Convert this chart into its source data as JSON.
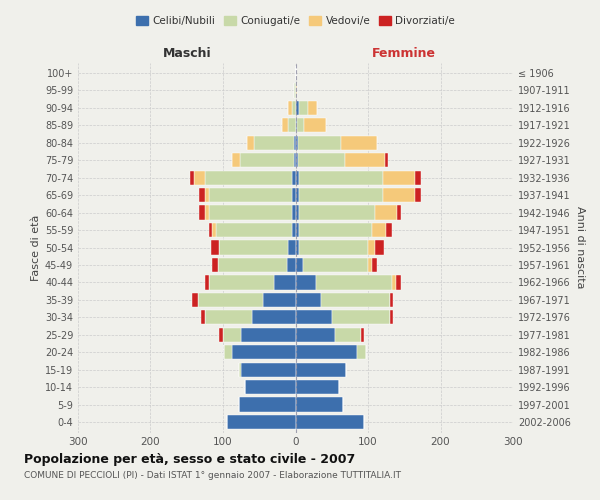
{
  "age_groups": [
    "0-4",
    "5-9",
    "10-14",
    "15-19",
    "20-24",
    "25-29",
    "30-34",
    "35-39",
    "40-44",
    "45-49",
    "50-54",
    "55-59",
    "60-64",
    "65-69",
    "70-74",
    "75-79",
    "80-84",
    "85-89",
    "90-94",
    "95-99",
    "100+"
  ],
  "birth_years": [
    "2002-2006",
    "1997-2001",
    "1992-1996",
    "1987-1991",
    "1982-1986",
    "1977-1981",
    "1972-1976",
    "1967-1971",
    "1962-1966",
    "1957-1961",
    "1952-1956",
    "1947-1951",
    "1942-1946",
    "1937-1941",
    "1932-1936",
    "1927-1931",
    "1922-1926",
    "1917-1921",
    "1912-1916",
    "1907-1911",
    "≤ 1906"
  ],
  "maschi_celibi": [
    95,
    78,
    70,
    75,
    88,
    75,
    60,
    45,
    30,
    12,
    10,
    5,
    5,
    5,
    5,
    2,
    2,
    0,
    0,
    0,
    0
  ],
  "maschi_coniugati": [
    0,
    0,
    0,
    3,
    10,
    25,
    65,
    90,
    90,
    95,
    95,
    105,
    115,
    115,
    120,
    75,
    55,
    10,
    5,
    2,
    0
  ],
  "maschi_vedovi": [
    0,
    0,
    0,
    0,
    0,
    0,
    0,
    0,
    0,
    0,
    0,
    5,
    5,
    5,
    15,
    10,
    10,
    8,
    5,
    0,
    0
  ],
  "maschi_divorziati": [
    0,
    0,
    0,
    0,
    0,
    5,
    5,
    8,
    5,
    8,
    12,
    5,
    8,
    8,
    5,
    0,
    0,
    0,
    0,
    0,
    0
  ],
  "femmine_celibi": [
    95,
    65,
    60,
    70,
    85,
    55,
    50,
    35,
    28,
    10,
    5,
    5,
    5,
    5,
    5,
    3,
    3,
    2,
    5,
    0,
    0
  ],
  "femmine_coniugati": [
    0,
    0,
    0,
    0,
    12,
    35,
    80,
    95,
    105,
    90,
    95,
    100,
    105,
    115,
    115,
    65,
    60,
    10,
    12,
    0,
    0
  ],
  "femmine_vedovi": [
    0,
    0,
    0,
    0,
    0,
    0,
    0,
    0,
    5,
    5,
    10,
    20,
    30,
    45,
    45,
    55,
    50,
    30,
    12,
    2,
    0
  ],
  "femmine_divorziati": [
    0,
    0,
    0,
    0,
    0,
    5,
    5,
    5,
    8,
    8,
    12,
    8,
    5,
    8,
    8,
    5,
    0,
    0,
    0,
    0,
    0
  ],
  "color_celibi": "#3d6fad",
  "color_coniugati": "#c8d9a8",
  "color_vedovi": "#f5c97a",
  "color_divorziati": "#cc2222",
  "title": "Popolazione per età, sesso e stato civile - 2007",
  "subtitle": "COMUNE DI PECCIOLI (PI) - Dati ISTAT 1° gennaio 2007 - Elaborazione TUTTITALIA.IT",
  "label_maschi": "Maschi",
  "label_femmine": "Femmine",
  "ylabel_left": "Fasce di età",
  "ylabel_right": "Anni di nascita",
  "xlim": 300,
  "bg_color": "#f0f0eb",
  "grid_color": "#cccccc"
}
